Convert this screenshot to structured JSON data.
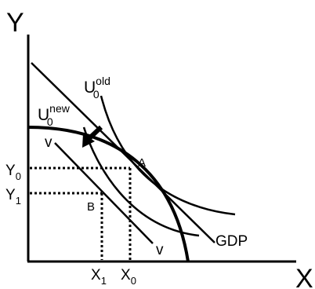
{
  "axes": {
    "x_label": "X",
    "y_label": "Y"
  },
  "curves": {
    "u_old": {
      "base": "U",
      "sub": "0",
      "sup": "old"
    },
    "u_new": {
      "base": "U",
      "sub": "0",
      "sup": "new"
    },
    "v_upper": "v",
    "v_lower": "v",
    "gdp": "GDP"
  },
  "points": {
    "a": "A",
    "b": "B"
  },
  "ticks": {
    "y0": {
      "base": "Y",
      "sub": "0"
    },
    "y1": {
      "base": "Y",
      "sub": "1"
    },
    "x1": {
      "base": "X",
      "sub": "1"
    },
    "x0": {
      "base": "X",
      "sub": "0"
    }
  }
}
